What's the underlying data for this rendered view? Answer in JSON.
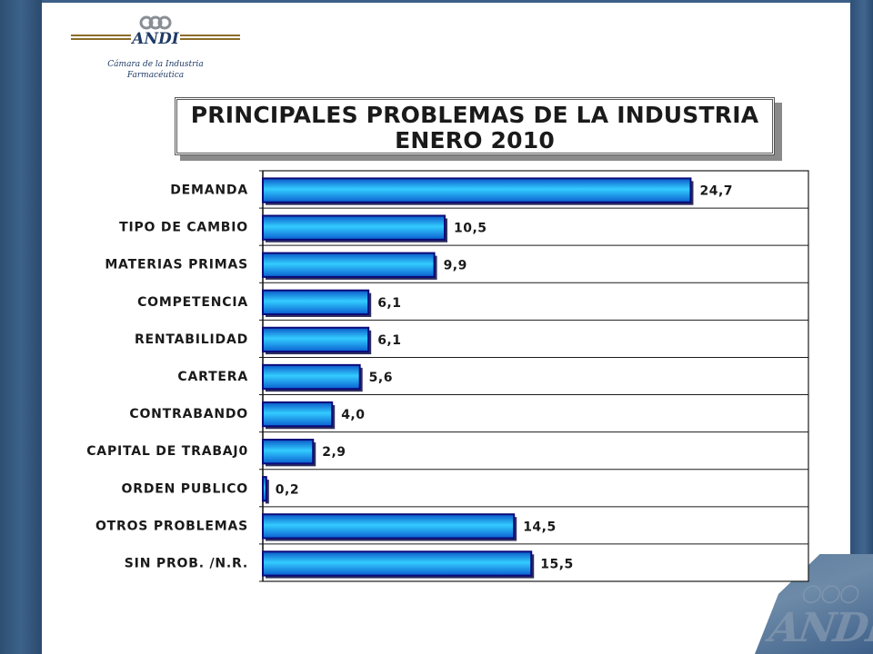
{
  "logo": {
    "brand": "ANDI",
    "caption_line1": "Cámara de la Industria",
    "caption_line2": "Farmacéutica"
  },
  "watermark": {
    "brand": "ANDI"
  },
  "colors": {
    "frame": "#34587f",
    "bar_light": "#33ccff",
    "bar_dark": "#0d6fd6",
    "bar_border": "#0a0a7a"
  },
  "chart_data": {
    "type": "bar",
    "orientation": "horizontal",
    "title": "PRINCIPALES PROBLEMAS DE LA INDUSTRIA",
    "subtitle": "ENERO 2010",
    "categories": [
      "DEMANDA",
      "TIPO DE CAMBIO",
      "MATERIAS PRIMAS",
      "COMPETENCIA",
      "RENTABILIDAD",
      "CARTERA",
      "CONTRABANDO",
      "CAPITAL DE TRABAJ0",
      "ORDEN PUBLICO",
      "OTROS PROBLEMAS",
      "SIN PROB. /N.R."
    ],
    "values": [
      24.7,
      10.5,
      9.9,
      6.1,
      6.1,
      5.6,
      4.0,
      2.9,
      0.2,
      14.5,
      15.5
    ],
    "data_labels": [
      "24,7",
      "10,5",
      "9,9",
      "6,1",
      "6,1",
      "5,6",
      "4,0",
      "2,9",
      "0,2",
      "14,5",
      "15,5"
    ],
    "xlim": [
      0,
      31.5
    ],
    "grid": "horizontal",
    "legend": "none"
  }
}
